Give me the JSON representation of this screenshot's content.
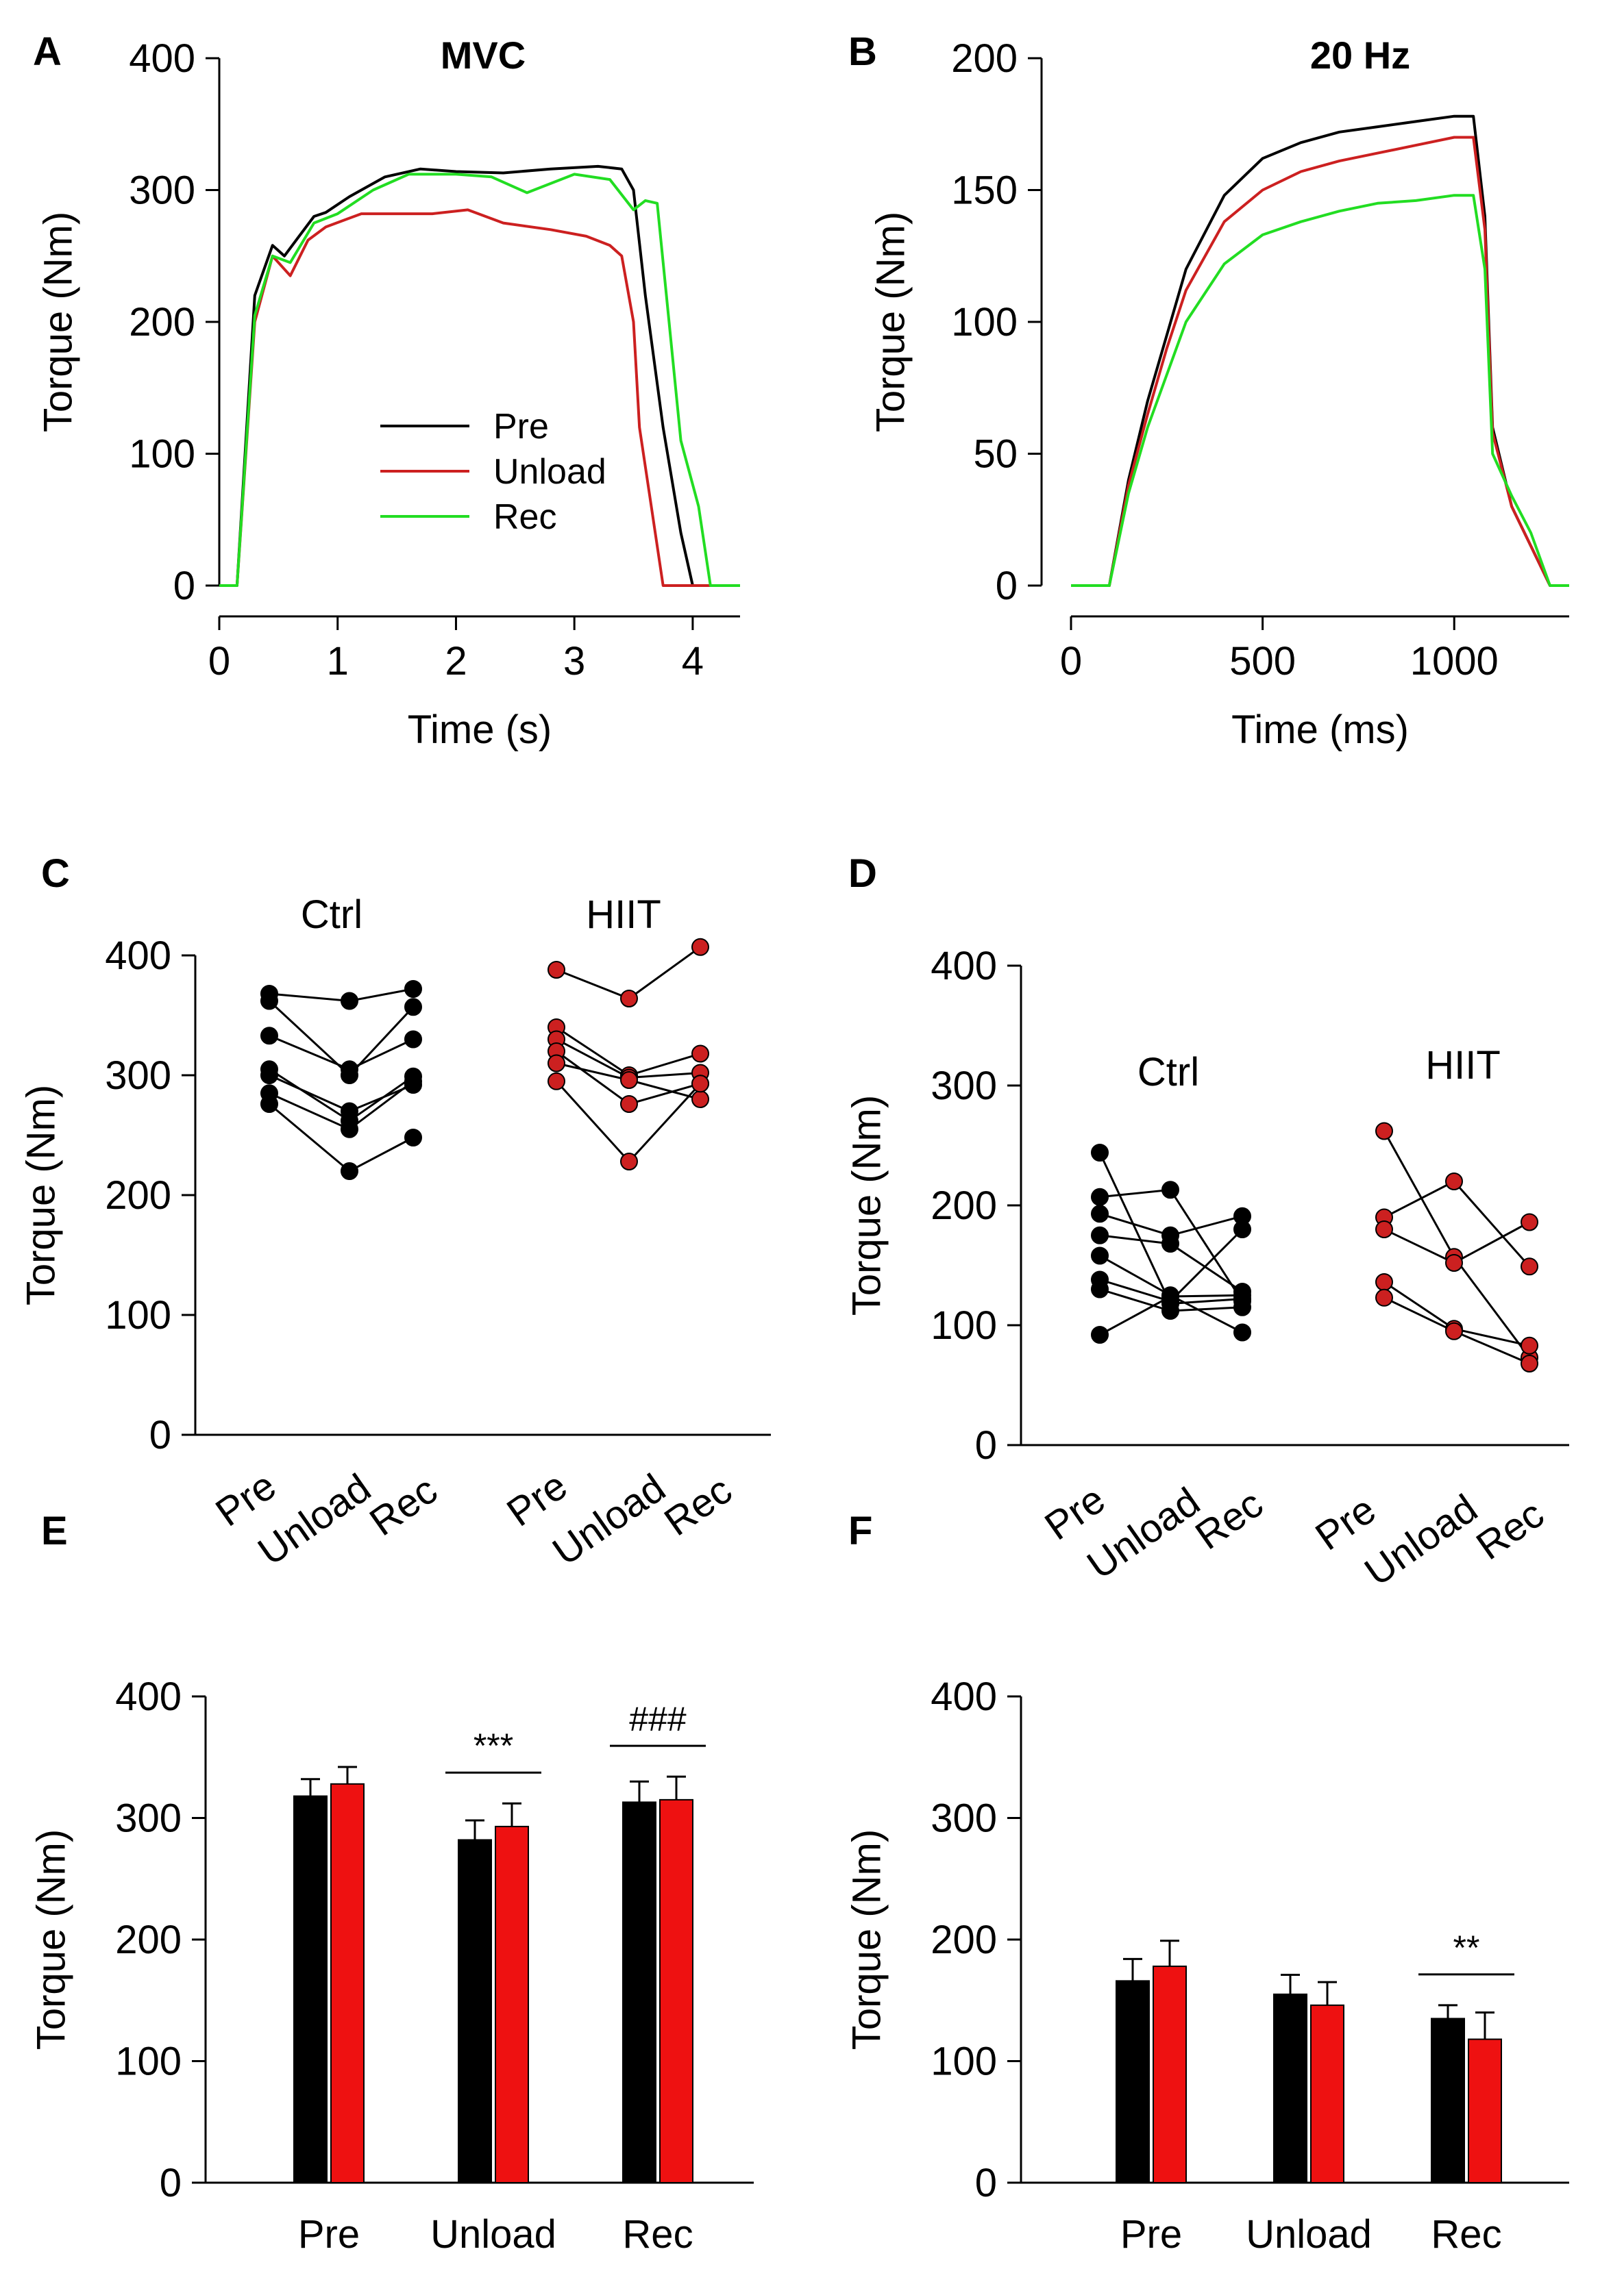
{
  "colors": {
    "pre": "#000000",
    "unload": "#cc2020",
    "rec": "#22dd22",
    "ctrl": "#000000",
    "hiit": "#cc2020",
    "bar_hiit": "#ee1111"
  },
  "panel_labels": {
    "A": "A",
    "B": "B",
    "C": "C",
    "D": "D",
    "E": "E",
    "F": "F"
  },
  "chart_data": [
    {
      "id": "A",
      "type": "line",
      "title": "MVC",
      "xlabel": "Time (s)",
      "ylabel": "Torque (Nm)",
      "xlim": [
        0,
        4.4
      ],
      "ylim": [
        0,
        400
      ],
      "xticks": [
        0,
        1,
        2,
        3,
        4
      ],
      "yticks": [
        0,
        100,
        200,
        300,
        400
      ],
      "legend": {
        "position": "center",
        "entries": [
          "Pre",
          "Unload",
          "Rec"
        ]
      },
      "series": [
        {
          "name": "Pre",
          "color_key": "pre",
          "x": [
            0,
            0.15,
            0.3,
            0.45,
            0.55,
            0.65,
            0.8,
            0.9,
            1.1,
            1.4,
            1.7,
            2.0,
            2.4,
            2.8,
            3.2,
            3.4,
            3.5,
            3.6,
            3.75,
            3.9,
            4.0,
            4.4
          ],
          "y": [
            0,
            0,
            220,
            258,
            250,
            262,
            280,
            283,
            295,
            310,
            316,
            314,
            313,
            316,
            318,
            316,
            300,
            220,
            120,
            40,
            0,
            0
          ]
        },
        {
          "name": "Unload",
          "color_key": "unload",
          "x": [
            0,
            0.15,
            0.3,
            0.45,
            0.6,
            0.75,
            0.9,
            1.2,
            1.5,
            1.8,
            2.1,
            2.4,
            2.8,
            3.1,
            3.3,
            3.4,
            3.5,
            3.55,
            3.65,
            3.75,
            4.4
          ],
          "y": [
            0,
            0,
            200,
            250,
            235,
            262,
            272,
            282,
            282,
            282,
            285,
            275,
            270,
            265,
            258,
            250,
            200,
            120,
            60,
            0,
            0
          ]
        },
        {
          "name": "Rec",
          "color_key": "rec",
          "x": [
            0,
            0.15,
            0.3,
            0.45,
            0.6,
            0.8,
            1.0,
            1.3,
            1.6,
            2.0,
            2.3,
            2.6,
            3.0,
            3.3,
            3.5,
            3.6,
            3.7,
            3.8,
            3.9,
            4.05,
            4.15,
            4.4
          ],
          "y": [
            0,
            0,
            205,
            250,
            245,
            275,
            282,
            300,
            312,
            312,
            310,
            298,
            312,
            308,
            285,
            292,
            290,
            200,
            110,
            60,
            0,
            0
          ]
        }
      ]
    },
    {
      "id": "B",
      "type": "line",
      "title": "20 Hz",
      "xlabel": "Time (ms)",
      "ylabel": "Torque (Nm)",
      "xlim": [
        0,
        1300
      ],
      "ylim": [
        0,
        200
      ],
      "xticks": [
        0,
        500,
        1000
      ],
      "yticks": [
        0,
        50,
        100,
        150,
        200
      ],
      "series": [
        {
          "name": "Pre",
          "color_key": "pre",
          "x": [
            0,
            100,
            150,
            200,
            250,
            300,
            400,
            500,
            600,
            700,
            800,
            900,
            1000,
            1050,
            1080,
            1100,
            1150,
            1200,
            1250,
            1300
          ],
          "y": [
            0,
            0,
            40,
            70,
            95,
            120,
            148,
            162,
            168,
            172,
            174,
            176,
            178,
            178,
            140,
            60,
            30,
            15,
            0,
            0
          ]
        },
        {
          "name": "Unload",
          "color_key": "unload",
          "x": [
            0,
            100,
            150,
            200,
            250,
            300,
            400,
            500,
            600,
            700,
            800,
            900,
            1000,
            1050,
            1080,
            1100,
            1150,
            1200,
            1250,
            1300
          ],
          "y": [
            0,
            0,
            38,
            65,
            90,
            112,
            138,
            150,
            157,
            161,
            164,
            167,
            170,
            170,
            135,
            58,
            30,
            15,
            0,
            0
          ]
        },
        {
          "name": "Rec",
          "color_key": "rec",
          "x": [
            0,
            100,
            150,
            200,
            250,
            300,
            400,
            500,
            600,
            700,
            800,
            900,
            1000,
            1050,
            1080,
            1100,
            1150,
            1200,
            1250,
            1300
          ],
          "y": [
            0,
            0,
            35,
            60,
            80,
            100,
            122,
            133,
            138,
            142,
            145,
            146,
            148,
            148,
            120,
            50,
            34,
            20,
            0,
            0
          ]
        }
      ]
    },
    {
      "id": "C",
      "type": "scatter",
      "ylabel": "Torque (Nm)",
      "ylim": [
        0,
        400
      ],
      "yticks": [
        0,
        100,
        200,
        300,
        400
      ],
      "categories": [
        "Pre",
        "Unload",
        "Rec"
      ],
      "groups": [
        {
          "name": "Ctrl",
          "color_key": "ctrl",
          "subjects": [
            [
              368,
              362,
              372
            ],
            [
              362,
              300,
              357
            ],
            [
              333,
              305,
              330
            ],
            [
              305,
              262,
              299
            ],
            [
              300,
              270,
              292
            ],
            [
              285,
              255,
              295
            ],
            [
              276,
              220,
              248
            ]
          ]
        },
        {
          "name": "HIIT",
          "color_key": "hiit",
          "subjects": [
            [
              388,
              364,
              407
            ],
            [
              340,
              300,
              318
            ],
            [
              330,
              298,
              302
            ],
            [
              320,
              276,
              293
            ],
            [
              310,
              296,
              280
            ],
            [
              295,
              228,
              293
            ]
          ]
        }
      ]
    },
    {
      "id": "D",
      "type": "scatter",
      "ylabel": "Torque (Nm)",
      "ylim": [
        0,
        400
      ],
      "yticks": [
        0,
        100,
        200,
        300,
        400
      ],
      "categories": [
        "Pre",
        "Unload",
        "Rec"
      ],
      "groups": [
        {
          "name": "Ctrl",
          "color_key": "ctrl",
          "subjects": [
            [
              244,
              118,
              122
            ],
            [
              207,
              213,
              120
            ],
            [
              193,
              175,
              191
            ],
            [
              175,
              168,
              128
            ],
            [
              158,
              125,
              94
            ],
            [
              138,
              120,
              180
            ],
            [
              130,
              112,
              115
            ],
            [
              92,
              124,
              125
            ]
          ]
        },
        {
          "name": "HIIT",
          "color_key": "hiit",
          "subjects": [
            [
              262,
              157,
              73
            ],
            [
              190,
              220,
              149
            ],
            [
              180,
              152,
              186
            ],
            [
              136,
              97,
              83
            ],
            [
              123,
              95,
              68
            ]
          ]
        }
      ]
    },
    {
      "id": "E",
      "type": "bar",
      "ylabel": "Torque (Nm)",
      "ylim": [
        0,
        400
      ],
      "yticks": [
        0,
        100,
        200,
        300,
        400
      ],
      "categories": [
        "Pre",
        "Unload",
        "Rec"
      ],
      "series": [
        {
          "name": "Ctrl",
          "color_key": "ctrl",
          "values": [
            318,
            282,
            313
          ],
          "errors": [
            14,
            16,
            17
          ]
        },
        {
          "name": "HIIT",
          "color_key": "bar_hiit",
          "values": [
            328,
            293,
            315
          ],
          "errors": [
            14,
            19,
            19
          ]
        }
      ],
      "annotations": [
        {
          "category": "Unload",
          "text": "***"
        },
        {
          "category": "Rec",
          "text": "###"
        }
      ]
    },
    {
      "id": "F",
      "type": "bar",
      "ylabel": "Torque (Nm)",
      "ylim": [
        0,
        400
      ],
      "yticks": [
        0,
        100,
        200,
        300,
        400
      ],
      "categories": [
        "Pre",
        "Unload",
        "Rec"
      ],
      "series": [
        {
          "name": "Ctrl",
          "color_key": "ctrl",
          "values": [
            166,
            155,
            135
          ],
          "errors": [
            18,
            16,
            11
          ]
        },
        {
          "name": "HIIT",
          "color_key": "bar_hiit",
          "values": [
            178,
            146,
            118
          ],
          "errors": [
            21,
            19,
            22
          ]
        }
      ],
      "annotations": [
        {
          "category": "Rec",
          "text": "**"
        }
      ]
    }
  ]
}
